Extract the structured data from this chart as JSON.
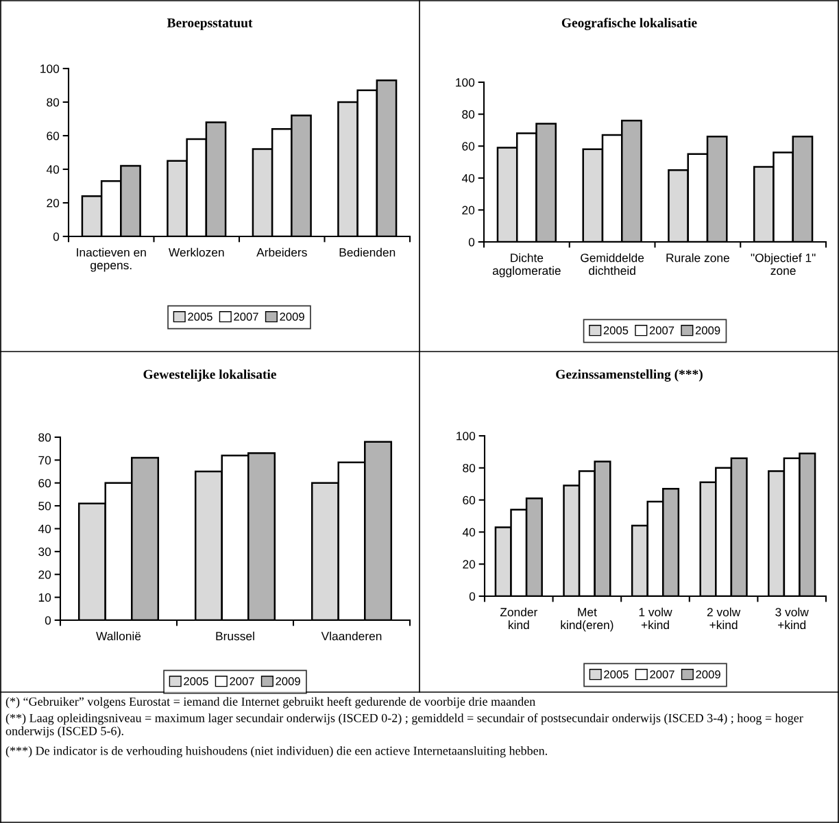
{
  "chart_data": [
    {
      "type": "bar",
      "title": "Beroepsstatuut",
      "categories": [
        "Inactieven en\ngepens.",
        "Werklozen",
        "Arbeiders",
        "Bedienden"
      ],
      "series": [
        {
          "name": "2005",
          "color": "#d9d9d9",
          "values": [
            24,
            45,
            52,
            80
          ]
        },
        {
          "name": "2007",
          "color": "#ffffff",
          "values": [
            33,
            58,
            64,
            87
          ]
        },
        {
          "name": "2009",
          "color": "#b3b3b3",
          "values": [
            42,
            68,
            72,
            93
          ]
        }
      ],
      "ylim": [
        0,
        100
      ],
      "yticks": [
        0,
        20,
        40,
        60,
        80,
        100
      ],
      "grid": false,
      "legend": "bottom"
    },
    {
      "type": "bar",
      "title": "Geografische lokalisatie",
      "categories": [
        "Dichte\nagglomeratie",
        "Gemiddelde\ndichtheid",
        "Rurale zone",
        "\"Objectief 1\"\nzone"
      ],
      "series": [
        {
          "name": "2005",
          "color": "#d9d9d9",
          "values": [
            59,
            58,
            45,
            47
          ]
        },
        {
          "name": "2007",
          "color": "#ffffff",
          "values": [
            68,
            67,
            55,
            56
          ]
        },
        {
          "name": "2009",
          "color": "#b3b3b3",
          "values": [
            74,
            76,
            66,
            66
          ]
        }
      ],
      "ylim": [
        0,
        100
      ],
      "yticks": [
        0,
        20,
        40,
        60,
        80,
        100
      ],
      "grid": false,
      "legend": "bottom"
    },
    {
      "type": "bar",
      "title": "Gewestelijke lokalisatie",
      "categories": [
        "Wallonië",
        "Brussel",
        "Vlaanderen"
      ],
      "series": [
        {
          "name": "2005",
          "color": "#d9d9d9",
          "values": [
            51,
            65,
            60
          ]
        },
        {
          "name": "2007",
          "color": "#ffffff",
          "values": [
            60,
            72,
            69
          ]
        },
        {
          "name": "2009",
          "color": "#b3b3b3",
          "values": [
            71,
            73,
            78
          ]
        }
      ],
      "ylim": [
        0,
        80
      ],
      "yticks": [
        0,
        10,
        20,
        30,
        40,
        50,
        60,
        70,
        80
      ],
      "grid": false,
      "legend": "bottom"
    },
    {
      "type": "bar",
      "title": "Gezinssamenstelling (***)",
      "categories": [
        "Zonder\nkind",
        "Met\nkind(eren)",
        "1 volw\n+kind",
        "2 volw\n+kind",
        "3 volw\n+kind"
      ],
      "series": [
        {
          "name": "2005",
          "color": "#d9d9d9",
          "values": [
            43,
            69,
            44,
            71,
            78
          ]
        },
        {
          "name": "2007",
          "color": "#ffffff",
          "values": [
            54,
            78,
            59,
            80,
            86
          ]
        },
        {
          "name": "2009",
          "color": "#b3b3b3",
          "values": [
            61,
            84,
            67,
            86,
            89
          ]
        }
      ],
      "ylim": [
        0,
        100
      ],
      "yticks": [
        0,
        20,
        40,
        60,
        80,
        100
      ],
      "grid": false,
      "legend": "bottom",
      "annotations": [
        "(*) “Gebruiker” volgens Eurostat = iemand die Internet gebruikt heeft gedurende de voorbije drie maanden",
        "(**) Laag opleidingsniveau = maximum lager secundair onderwijs (ISCED 0-2) ; gemiddeld = secundair of postsecundair onderwijs (ISCED 3-4) ; hoog = hoger onderwijs (ISCED 5-6).",
        "(***) De indicator is de verhouding huishoudens (niet individuen) die een actieve Internetaansluiting hebben."
      ]
    }
  ]
}
